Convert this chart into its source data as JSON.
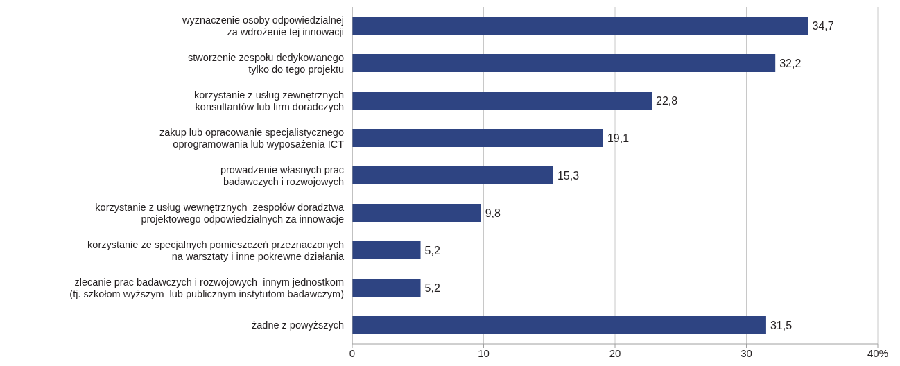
{
  "chart_data": {
    "type": "bar",
    "orientation": "horizontal",
    "categories": [
      "wyznaczenie osoby odpowiedzialnej\nza wdrożenie tej innowacji",
      "stworzenie zespołu dedykowanego\ntylko do tego projektu",
      "korzystanie z usług zewnętrznych\nkonsultantów lub firm doradczych",
      "zakup lub opracowanie specjalistycznego\noprogramowania lub wyposażenia ICT",
      "prowadzenie własnych prac\nbadawczych i rozwojowych",
      "korzystanie z usług wewnętrznych  zespołów doradztwa\nprojektowego odpowiedzialnych za innowacje",
      "korzystanie ze specjalnych pomieszczeń przeznaczonych\nna warsztaty i inne pokrewne działania",
      "zlecanie prac badawczych i rozwojowych  innym jednostkom\n(tj. szkołom wyższym  lub publicznym instytutom badawczym)",
      "żadne z powyższych"
    ],
    "values": [
      34.7,
      32.2,
      22.8,
      19.1,
      15.3,
      9.8,
      5.2,
      5.2,
      31.5
    ],
    "value_labels": [
      "34,7",
      "32,2",
      "22,8",
      "19,1",
      "15,3",
      "9,8",
      "5,2",
      "5,2",
      "31,5"
    ],
    "color": "#2e4482",
    "xlim": [
      0,
      40
    ],
    "xticks": [
      0,
      10,
      20,
      30,
      {
        "value": 40,
        "label": "40%"
      }
    ],
    "grid": "x"
  }
}
